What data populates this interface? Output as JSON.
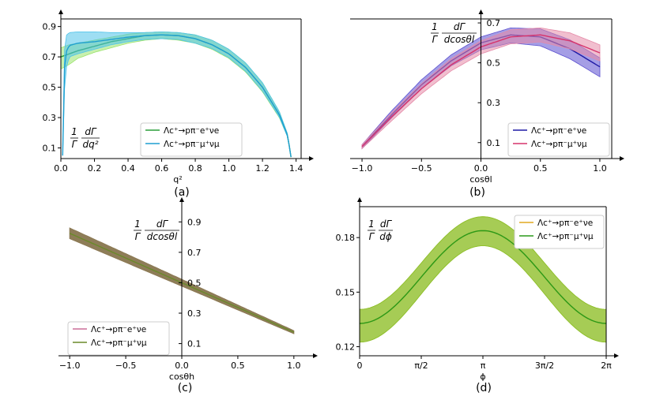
{
  "chart_data": [
    {
      "type": "line",
      "caption": "(a)",
      "xlabel": "q²",
      "ylabel": {
        "num": "dΓ",
        "den": "dq²",
        "pre_num": "1",
        "pre_den": "Γ"
      },
      "xlim": [
        0,
        1.43
      ],
      "ylim": [
        0.03,
        0.95
      ],
      "xticks": [
        0.0,
        0.2,
        0.4,
        0.6,
        0.8,
        1.0,
        1.2,
        1.4
      ],
      "xtick_labels": [
        "0.0",
        "0.2",
        "0.4",
        "0.6",
        "0.8",
        "1.0",
        "1.2",
        "1.4"
      ],
      "yticks": [
        0.1,
        0.3,
        0.5,
        0.7,
        0.9
      ],
      "ytick_labels": [
        "0.1",
        "0.3",
        "0.5",
        "0.7",
        "0.9"
      ],
      "legend_position": "lower-right",
      "series": [
        {
          "name": "Λc⁺→pπ⁻e⁺νe",
          "color": "#2a9d3a",
          "band_color": "#9be36b",
          "x": [
            0.0,
            0.05,
            0.1,
            0.2,
            0.3,
            0.4,
            0.5,
            0.6,
            0.7,
            0.8,
            0.9,
            1.0,
            1.1,
            1.2,
            1.3,
            1.35,
            1.37
          ],
          "center": [
            0.7,
            0.72,
            0.74,
            0.77,
            0.8,
            0.82,
            0.84,
            0.845,
            0.84,
            0.82,
            0.78,
            0.72,
            0.63,
            0.5,
            0.32,
            0.18,
            0.04
          ],
          "lower": [
            0.62,
            0.65,
            0.69,
            0.73,
            0.76,
            0.79,
            0.81,
            0.82,
            0.81,
            0.79,
            0.75,
            0.69,
            0.6,
            0.47,
            0.3,
            0.17,
            0.04
          ],
          "upper": [
            0.76,
            0.78,
            0.79,
            0.81,
            0.83,
            0.85,
            0.86,
            0.865,
            0.86,
            0.845,
            0.81,
            0.75,
            0.66,
            0.53,
            0.34,
            0.19,
            0.04
          ]
        },
        {
          "name": "Λc⁺→pπ⁻μ⁺νμ",
          "color": "#1f9fd0",
          "band_color": "#4fc3ea",
          "x": [
            0.011,
            0.02,
            0.03,
            0.05,
            0.1,
            0.2,
            0.3,
            0.4,
            0.5,
            0.6,
            0.7,
            0.8,
            0.9,
            1.0,
            1.1,
            1.2,
            1.3,
            1.35,
            1.37
          ],
          "center": [
            0.05,
            0.6,
            0.73,
            0.775,
            0.79,
            0.8,
            0.815,
            0.83,
            0.84,
            0.845,
            0.84,
            0.82,
            0.78,
            0.72,
            0.63,
            0.5,
            0.32,
            0.18,
            0.04
          ],
          "lower": [
            0.05,
            0.45,
            0.62,
            0.7,
            0.72,
            0.75,
            0.78,
            0.8,
            0.815,
            0.82,
            0.815,
            0.79,
            0.755,
            0.695,
            0.605,
            0.475,
            0.305,
            0.17,
            0.04
          ],
          "upper": [
            0.05,
            0.72,
            0.84,
            0.86,
            0.865,
            0.865,
            0.86,
            0.86,
            0.86,
            0.865,
            0.86,
            0.845,
            0.81,
            0.75,
            0.66,
            0.53,
            0.34,
            0.19,
            0.04
          ]
        }
      ]
    },
    {
      "type": "line",
      "caption": "(b)",
      "xlabel": "cosθl",
      "ylabel": {
        "num": "dΓ",
        "den": "dcosθl",
        "pre_num": "1",
        "pre_den": "Γ"
      },
      "xlim": [
        -1.1,
        1.1
      ],
      "ylim": [
        0.02,
        0.72
      ],
      "xticks": [
        -1.0,
        -0.5,
        0.0,
        0.5,
        1.0
      ],
      "xtick_labels": [
        "−1.0",
        "−0.5",
        "0.0",
        "0.5",
        "1.0"
      ],
      "yticks": [
        0.1,
        0.3,
        0.5,
        0.7
      ],
      "ytick_labels": [
        "0.1",
        "0.3",
        "0.5",
        "0.7"
      ],
      "legend_position": "lower-right",
      "series": [
        {
          "name": "Λc⁺→pπ⁻e⁺νe",
          "color": "#1f1aa6",
          "band_color": "#5b4fd0",
          "x": [
            -1.0,
            -0.75,
            -0.5,
            -0.25,
            0.0,
            0.25,
            0.5,
            0.75,
            1.0
          ],
          "center": [
            0.08,
            0.24,
            0.39,
            0.51,
            0.6,
            0.64,
            0.63,
            0.57,
            0.48
          ],
          "lower": [
            0.07,
            0.225,
            0.37,
            0.485,
            0.565,
            0.6,
            0.585,
            0.52,
            0.43
          ],
          "upper": [
            0.09,
            0.26,
            0.415,
            0.54,
            0.63,
            0.675,
            0.67,
            0.615,
            0.525
          ]
        },
        {
          "name": "Λc⁺→pπ⁻μ⁺νμ",
          "color": "#d6336c",
          "band_color": "#e58aa8",
          "x": [
            -1.0,
            -0.75,
            -0.5,
            -0.25,
            0.0,
            0.25,
            0.5,
            0.75,
            1.0
          ],
          "center": [
            0.08,
            0.23,
            0.37,
            0.49,
            0.58,
            0.63,
            0.64,
            0.61,
            0.55
          ],
          "lower": [
            0.07,
            0.21,
            0.345,
            0.46,
            0.545,
            0.595,
            0.605,
            0.57,
            0.51
          ],
          "upper": [
            0.09,
            0.25,
            0.395,
            0.52,
            0.61,
            0.665,
            0.675,
            0.65,
            0.59
          ]
        }
      ]
    },
    {
      "type": "line",
      "caption": "(c)",
      "xlabel": "cosθh",
      "ylabel": {
        "num": "dΓ",
        "den": "dcosθl",
        "pre_num": "1",
        "pre_den": "Γ"
      },
      "xlim": [
        -1.1,
        1.1
      ],
      "ylim": [
        0.02,
        1.0
      ],
      "xticks": [
        -1.0,
        -0.5,
        0.0,
        0.5,
        1.0
      ],
      "xtick_labels": [
        "−1.0",
        "−0.5",
        "0.0",
        "0.5",
        "1.0"
      ],
      "yticks": [
        0.1,
        0.3,
        0.5,
        0.7,
        0.9
      ],
      "ytick_labels": [
        "0.1",
        "0.3",
        "0.5",
        "0.7",
        "0.9"
      ],
      "legend_position": "lower-left",
      "series": [
        {
          "name": "Λc⁺→pπ⁻e⁺νe",
          "color": "#cc6f98",
          "band_color": "#8c7a55",
          "x": [
            -1.0,
            1.0
          ],
          "center": [
            0.825,
            0.175
          ],
          "lower": [
            0.79,
            0.165
          ],
          "upper": [
            0.86,
            0.185
          ]
        },
        {
          "name": "Λc⁺→pπ⁻μ⁺νμ",
          "color": "#6a8a2a",
          "band_color": "#8c7a55",
          "x": [
            -1.0,
            1.0
          ],
          "center": [
            0.825,
            0.175
          ],
          "lower": [
            0.79,
            0.165
          ],
          "upper": [
            0.86,
            0.185
          ]
        }
      ]
    },
    {
      "type": "line",
      "caption": "(d)",
      "xlabel": "ϕ",
      "ylabel": {
        "num": "dΓ",
        "den": "dϕ",
        "pre_num": "1",
        "pre_den": "Γ"
      },
      "xlim": [
        0,
        6.2832
      ],
      "ylim": [
        0.115,
        0.197
      ],
      "xticks": [
        0,
        1.5708,
        3.1416,
        4.7124,
        6.2832
      ],
      "xtick_labels": [
        "0",
        "π/2",
        "π",
        "3π/2",
        "2π"
      ],
      "yticks": [
        0.12,
        0.15,
        0.18
      ],
      "ytick_labels": [
        "0.12",
        "0.15",
        "0.18"
      ],
      "legend_position": "top-right",
      "series": [
        {
          "name": "Λc⁺→pπ⁻e⁺νe",
          "color": "#e0a820",
          "band_color": "#8fbf2a",
          "model": "a - b*cos(x)",
          "center_ab": [
            0.1583,
            0.0255
          ],
          "lower_ab": [
            0.149,
            0.0265
          ],
          "upper_ab": [
            0.166,
            0.0255
          ]
        },
        {
          "name": "Λc⁺→pπ⁻μ⁺νμ",
          "color": "#2a9a1a",
          "band_color": "#8fbf2a",
          "model": "a - b*cos(x)",
          "center_ab": [
            0.1583,
            0.0255
          ],
          "lower_ab": [
            0.149,
            0.0265
          ],
          "upper_ab": [
            0.166,
            0.0255
          ]
        }
      ]
    }
  ]
}
